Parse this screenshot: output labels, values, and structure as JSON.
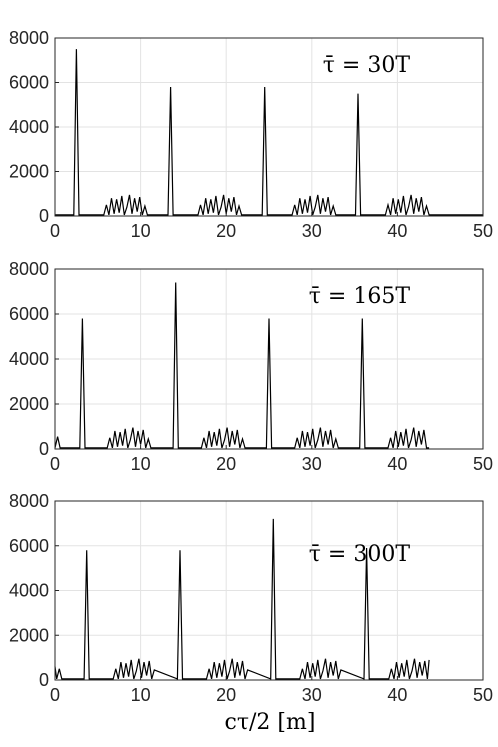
{
  "chart_data": [
    {
      "type": "line",
      "annotation": "τ̄ = 30T",
      "xlim": [
        0,
        50
      ],
      "ylim": [
        0,
        8000
      ],
      "xticks": [
        0,
        10,
        20,
        30,
        40,
        50
      ],
      "yticks": [
        0,
        2000,
        4000,
        6000,
        8000
      ],
      "grid": true,
      "series": [
        {
          "color": "#000000",
          "x": [
            0,
            2.2,
            2.5,
            2.8,
            5.7,
            6.0,
            6.3,
            6.6,
            6.9,
            7.2,
            7.5,
            7.8,
            8.1,
            8.4,
            8.7,
            9.0,
            9.3,
            9.6,
            9.9,
            10.2,
            10.5,
            10.8,
            13.2,
            13.5,
            13.8,
            16.7,
            17.0,
            17.3,
            17.6,
            17.9,
            18.2,
            18.5,
            18.8,
            19.1,
            19.4,
            19.7,
            20.0,
            20.3,
            20.6,
            20.9,
            21.2,
            21.5,
            21.8,
            24.2,
            24.5,
            24.8,
            27.7,
            28.0,
            28.3,
            28.6,
            28.9,
            29.2,
            29.5,
            29.8,
            30.1,
            30.4,
            30.7,
            31.0,
            31.3,
            31.6,
            31.9,
            32.2,
            32.5,
            32.8,
            35.1,
            35.4,
            35.7,
            38.6,
            38.9,
            39.2,
            39.5,
            39.8,
            40.1,
            40.4,
            40.7,
            41.0,
            41.3,
            41.6,
            41.9,
            42.2,
            42.5,
            42.8,
            43.1,
            43.4,
            43.7,
            50
          ],
          "y": [
            50,
            50,
            7500,
            50,
            50,
            500,
            50,
            800,
            100,
            750,
            150,
            900,
            50,
            400,
            950,
            100,
            800,
            200,
            850,
            50,
            450,
            50,
            50,
            5800,
            50,
            50,
            500,
            50,
            800,
            100,
            750,
            150,
            900,
            50,
            400,
            950,
            100,
            800,
            200,
            850,
            50,
            450,
            50,
            50,
            5800,
            50,
            50,
            500,
            50,
            800,
            100,
            750,
            150,
            900,
            50,
            400,
            950,
            100,
            800,
            200,
            850,
            50,
            450,
            50,
            50,
            5500,
            50,
            50,
            500,
            50,
            800,
            100,
            750,
            150,
            900,
            50,
            400,
            950,
            100,
            800,
            200,
            850,
            50,
            450,
            50,
            50
          ]
        }
      ]
    },
    {
      "type": "line",
      "annotation": "τ̄ = 165T",
      "xlim": [
        0,
        50
      ],
      "ylim": [
        0,
        8000
      ],
      "xticks": [
        0,
        10,
        20,
        30,
        40,
        50
      ],
      "yticks": [
        0,
        2000,
        4000,
        6000,
        8000
      ],
      "grid": true,
      "series": [
        {
          "color": "#000000",
          "x": [
            0,
            0.3,
            0.6,
            2.9,
            3.2,
            3.5,
            6.1,
            6.4,
            6.7,
            7.0,
            7.3,
            7.6,
            7.9,
            8.2,
            8.5,
            8.8,
            9.1,
            9.4,
            9.7,
            10.0,
            10.3,
            10.6,
            10.9,
            11.2,
            13.8,
            14.1,
            14.4,
            17.1,
            17.4,
            17.7,
            18.0,
            18.3,
            18.6,
            18.9,
            19.2,
            19.5,
            19.8,
            20.1,
            20.4,
            20.7,
            21.0,
            21.3,
            21.6,
            21.9,
            22.2,
            24.7,
            25.0,
            25.3,
            28.0,
            28.3,
            28.6,
            28.9,
            29.2,
            29.5,
            29.8,
            30.1,
            30.4,
            30.7,
            31.0,
            31.3,
            31.6,
            31.9,
            32.2,
            32.5,
            32.8,
            33.1,
            35.6,
            35.9,
            36.2,
            38.9,
            39.2,
            39.5,
            39.8,
            40.1,
            40.4,
            40.7,
            41.0,
            41.3,
            41.6,
            41.9,
            42.2,
            42.5,
            42.8,
            43.1,
            43.4,
            43.7
          ],
          "y": [
            50,
            550,
            50,
            50,
            5800,
            50,
            50,
            500,
            50,
            800,
            100,
            750,
            150,
            900,
            50,
            400,
            950,
            100,
            800,
            200,
            850,
            50,
            450,
            50,
            50,
            7400,
            50,
            50,
            500,
            50,
            800,
            100,
            750,
            150,
            900,
            50,
            400,
            950,
            100,
            800,
            200,
            850,
            50,
            450,
            50,
            50,
            5800,
            50,
            50,
            500,
            50,
            800,
            100,
            750,
            150,
            900,
            50,
            400,
            950,
            100,
            800,
            200,
            850,
            50,
            450,
            50,
            50,
            5800,
            50,
            50,
            500,
            50,
            800,
            100,
            750,
            150,
            900,
            50,
            400,
            950,
            100,
            800,
            200,
            850,
            50,
            50
          ]
        }
      ]
    },
    {
      "type": "line",
      "annotation": "τ̄ = 300T",
      "xlim": [
        0,
        50
      ],
      "ylim": [
        0,
        8000
      ],
      "xticks": [
        0,
        10,
        20,
        30,
        40,
        50
      ],
      "yticks": [
        0,
        2000,
        4000,
        6000,
        8000
      ],
      "grid": true,
      "series": [
        {
          "color": "#000000",
          "x": [
            0,
            0.2,
            0.5,
            0.8,
            1.1,
            3.4,
            3.7,
            4.0,
            6.8,
            7.1,
            7.4,
            7.7,
            8.0,
            8.3,
            8.6,
            8.9,
            9.2,
            9.5,
            9.8,
            10.1,
            10.4,
            10.7,
            11.0,
            11.3,
            11.6,
            14.3,
            14.6,
            14.9,
            17.7,
            18.0,
            18.3,
            18.6,
            18.9,
            19.2,
            19.5,
            19.8,
            20.1,
            20.4,
            20.7,
            21.0,
            21.3,
            21.6,
            21.9,
            22.2,
            22.5,
            25.2,
            25.5,
            25.8,
            28.6,
            28.9,
            29.2,
            29.5,
            29.8,
            30.1,
            30.4,
            30.7,
            31.0,
            31.3,
            31.6,
            31.9,
            32.2,
            32.5,
            32.8,
            33.1,
            33.4,
            36.1,
            36.4,
            36.7,
            39.0,
            39.3,
            39.6,
            39.9,
            40.2,
            40.5,
            40.8,
            41.1,
            41.4,
            41.7,
            42.0,
            42.3,
            42.6,
            42.9,
            43.2,
            43.5,
            43.7
          ],
          "y": [
            600,
            50,
            500,
            50,
            50,
            50,
            5800,
            50,
            50,
            500,
            50,
            800,
            100,
            750,
            150,
            900,
            50,
            400,
            950,
            100,
            800,
            200,
            850,
            50,
            450,
            50,
            5800,
            50,
            50,
            500,
            50,
            800,
            100,
            750,
            150,
            900,
            50,
            400,
            950,
            100,
            800,
            200,
            850,
            50,
            450,
            50,
            7200,
            50,
            50,
            500,
            50,
            800,
            100,
            750,
            150,
            900,
            50,
            400,
            950,
            100,
            800,
            200,
            850,
            50,
            450,
            50,
            5900,
            50,
            50,
            500,
            50,
            800,
            100,
            750,
            150,
            900,
            50,
            400,
            950,
            100,
            800,
            200,
            850,
            50,
            900
          ]
        }
      ]
    }
  ],
  "xlabel": "cτ/2 [m]"
}
